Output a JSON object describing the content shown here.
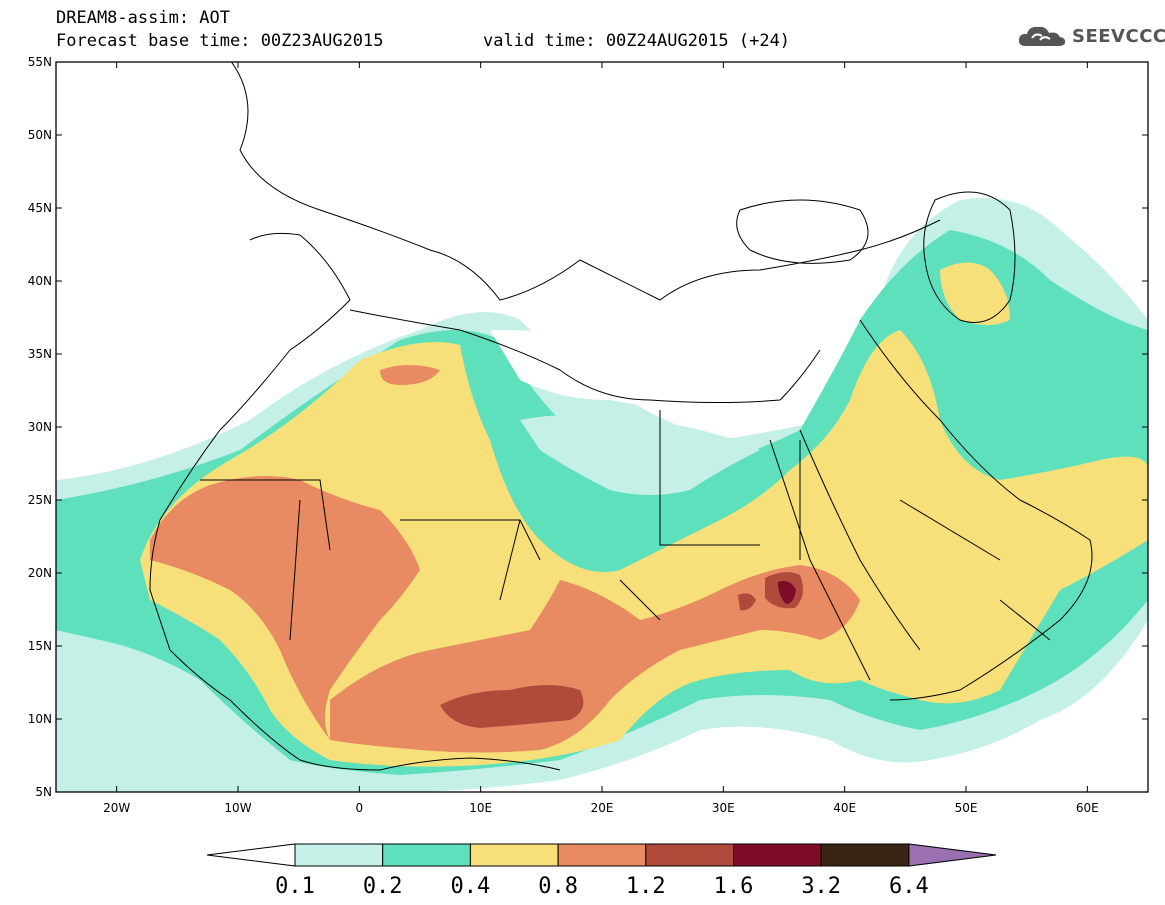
{
  "header": {
    "title": "DREAM8-assim: AOT",
    "base_time": "Forecast base time: 00Z23AUG2015",
    "valid_time": "valid time: 00Z24AUG2015 (+24)"
  },
  "logo": {
    "text": "SEEVCCC",
    "icon": "cloud-icon"
  },
  "map": {
    "lat_labels": [
      "55N",
      "50N",
      "45N",
      "40N",
      "35N",
      "30N",
      "25N",
      "20N",
      "15N",
      "10N",
      "5N"
    ],
    "lon_labels": [
      "20W",
      "10W",
      "0",
      "10E",
      "20E",
      "30E",
      "40E",
      "50E",
      "60E"
    ]
  },
  "colorbar": {
    "levels": [
      "0.1",
      "0.2",
      "0.4",
      "0.8",
      "1.2",
      "1.6",
      "3.2",
      "6.4"
    ],
    "colors": [
      "#c4f0e8",
      "#5ee0bc",
      "#f7e07a",
      "#e88a62",
      "#b24a3c",
      "#7c0c28",
      "#3a2414",
      "#9a70b0"
    ],
    "under_color": "#ffffff",
    "over_color": "#9a70b0"
  },
  "palette": {
    "c01": "#c4f0e8",
    "c02": "#5ee0bc",
    "c04": "#f7e07a",
    "c08": "#e88a62",
    "c12": "#b24a3c",
    "c16": "#7c0c28"
  }
}
